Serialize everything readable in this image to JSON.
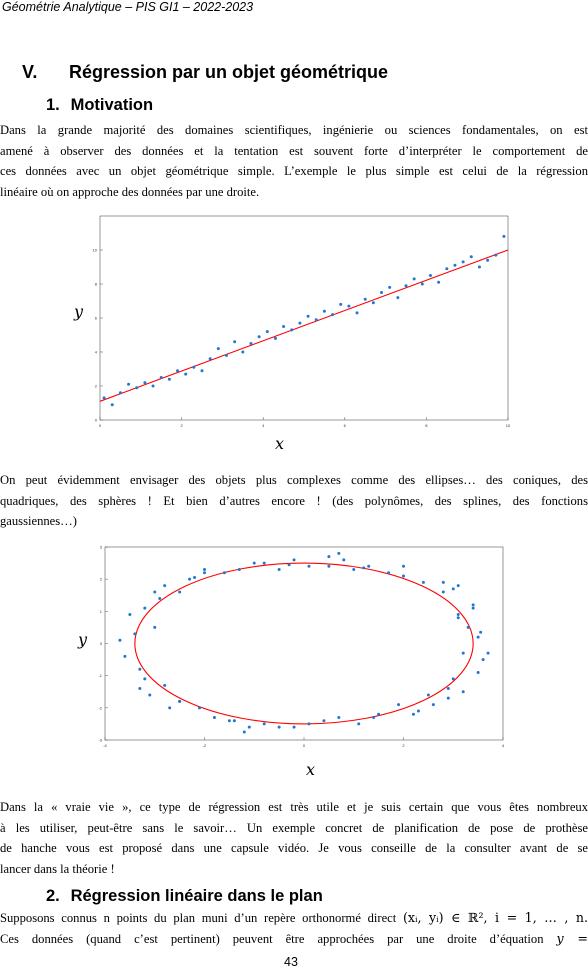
{
  "header": {
    "running_title": "Géométrie Analytique – PIS GI1 – 2022-2023"
  },
  "section": {
    "number": "V.",
    "title": "Régression par un objet géométrique"
  },
  "subsection1": {
    "number": "1.",
    "title": "Motivation"
  },
  "para1": {
    "lines": [
      "Dans la grande majorité des domaines scientifiques, ingénierie ou sciences fondamentales, on est",
      "amené à observer des données et la tentation est souvent forte d’interpréter le comportement de",
      "ces données avec un objet géométrique simple. L’exemple le plus simple est celui de la régression",
      "linéaire où on approche des données par une droite."
    ]
  },
  "figure1": {
    "xlabel": "x",
    "ylabel": "y"
  },
  "para2": {
    "lines": [
      "On peut évidemment envisager des objets plus complexes comme des ellipses… des coniques, des",
      "quadriques, des sphères ! Et bien d’autres encore ! (des polynômes, des splines, des fonctions",
      "gaussiennes…)"
    ]
  },
  "figure2": {
    "xlabel": "x",
    "ylabel": "y"
  },
  "para3": {
    "lines": [
      "Dans la « vraie vie », ce type de régression est très utile et je suis certain que vous êtes nombreux",
      "à les utiliser, peut-être sans le savoir… Un exemple concret de planification de pose de prothèse",
      "de hanche vous est proposé dans une capsule vidéo. Je vous conseille de la consulter avant de se",
      "lancer dans la théorie !"
    ]
  },
  "subsection2": {
    "number": "2.",
    "title": "Régression linéaire dans le plan"
  },
  "para4": {
    "line1_text": "Supposons connus n points du plan muni d’un repère orthonormé direct",
    "line1_math": "(xᵢ, yᵢ) ∈ ℝ², i = 1, … , n.",
    "line2_text": "Ces données (quand c’est pertinent) peuvent être approchées par une droite d’équation",
    "line2_math": "y ="
  },
  "page_number": "43",
  "chart_data": [
    {
      "type": "scatter",
      "title": "",
      "xlabel": "x",
      "ylabel": "y",
      "xlim": [
        0,
        10
      ],
      "ylim": [
        0,
        12
      ],
      "x_ticks": [
        0,
        2,
        4,
        6,
        8,
        10
      ],
      "y_ticks": [
        0,
        2,
        4,
        6,
        8,
        10
      ],
      "fit_line": {
        "x": [
          0,
          10
        ],
        "y": [
          1.1,
          10.0
        ],
        "color": "#ff0000"
      },
      "point_color": "#1f77d4",
      "series": [
        {
          "x": [
            0.1,
            0.3,
            0.5,
            0.7,
            0.9,
            1.1,
            1.3,
            1.5,
            1.7,
            1.9,
            2.1,
            2.3,
            2.5,
            2.7,
            2.9,
            3.1,
            3.3,
            3.5,
            3.7,
            3.9,
            4.1,
            4.3,
            4.5,
            4.7,
            4.9,
            5.1,
            5.3,
            5.5,
            5.7,
            5.9,
            6.1,
            6.3,
            6.5,
            6.7,
            6.9,
            7.1,
            7.3,
            7.5,
            7.7,
            7.9,
            8.1,
            8.3,
            8.5,
            8.7,
            8.9,
            9.1,
            9.3,
            9.5,
            9.7,
            9.9
          ],
          "y": [
            1.3,
            0.9,
            1.6,
            2.1,
            1.9,
            2.2,
            2.0,
            2.5,
            2.4,
            2.9,
            2.7,
            3.1,
            2.9,
            3.6,
            4.2,
            3.8,
            4.6,
            4.0,
            4.5,
            4.9,
            5.2,
            4.8,
            5.5,
            5.3,
            5.7,
            6.1,
            5.9,
            6.4,
            6.2,
            6.8,
            6.7,
            6.3,
            7.1,
            6.9,
            7.5,
            7.8,
            7.2,
            7.9,
            8.3,
            8.0,
            8.5,
            8.1,
            8.9,
            9.1,
            9.3,
            9.6,
            9.0,
            9.4,
            9.7,
            10.8
          ]
        }
      ]
    },
    {
      "type": "scatter",
      "title": "",
      "xlabel": "x",
      "ylabel": "y",
      "xlim": [
        -4,
        4
      ],
      "ylim": [
        -3,
        3
      ],
      "x_ticks": [
        -4,
        -2,
        0,
        2,
        4
      ],
      "y_ticks": [
        -3,
        -2,
        -1,
        0,
        1,
        2,
        3
      ],
      "fit_ellipse": {
        "center": [
          0,
          0
        ],
        "a": 3.4,
        "b": 2.5,
        "color": "#ff0000"
      },
      "point_color": "#1f77d4",
      "series": [
        {
          "x": [
            3.3,
            3.5,
            3.2,
            3.6,
            3.1,
            3.4,
            3.0,
            3.5,
            2.8,
            3.1,
            2.5,
            2.9,
            2.0,
            2.4,
            1.5,
            1.9,
            1.0,
            1.3,
            0.4,
            0.7,
            -0.2,
            0.1,
            -0.8,
            -0.5,
            -1.3,
            -1.0,
            -1.8,
            -1.5,
            -2.3,
            -2.0,
            -2.7,
            -2.5,
            -3.0,
            -2.8,
            -3.3,
            -3.1,
            -3.5,
            -3.2,
            -3.6,
            -3.3,
            -3.4,
            -3.0,
            -3.2,
            -2.8,
            -2.9,
            -2.5,
            -2.5,
            -2.1,
            -2.0,
            -1.6,
            -1.4,
            -1.1,
            -0.8,
            -0.5,
            -0.2,
            0.1,
            0.5,
            0.8,
            1.1,
            1.4,
            1.7,
            2.0,
            2.3,
            2.6,
            2.8,
            3.0,
            3.2,
            2.9,
            3.4,
            3.1,
            0.7,
            0.5,
            -0.3,
            1.2,
            -1.2,
            2.2,
            -2.2,
            3.7,
            -3.7,
            3.55
          ],
          "y": [
            0.5,
            0.2,
            -0.3,
            -0.5,
            0.9,
            1.2,
            -1.1,
            -0.9,
            1.6,
            1.8,
            -1.6,
            -1.4,
            2.1,
            1.9,
            -2.2,
            -1.9,
            2.3,
            2.4,
            -2.4,
            -2.3,
            2.6,
            2.4,
            -2.5,
            -2.6,
            2.3,
            2.5,
            -2.3,
            -2.4,
            2.0,
            2.2,
            -2.0,
            -1.8,
            1.6,
            1.8,
            -1.4,
            -1.6,
            0.9,
            1.1,
            -0.4,
            -0.8,
            0.3,
            0.5,
            -1.1,
            -1.3,
            1.4,
            1.6,
            -1.8,
            -2.0,
            2.3,
            2.2,
            -2.4,
            -2.6,
            2.5,
            2.3,
            -2.6,
            -2.5,
            2.4,
            2.6,
            -2.5,
            -2.3,
            2.2,
            2.4,
            -2.1,
            -1.9,
            1.9,
            1.7,
            -1.5,
            -1.7,
            1.1,
            0.8,
            2.8,
            2.7,
            2.45,
            2.35,
            -2.75,
            -2.2,
            2.05,
            -0.3,
            0.1,
            0.35
          ]
        }
      ]
    }
  ]
}
